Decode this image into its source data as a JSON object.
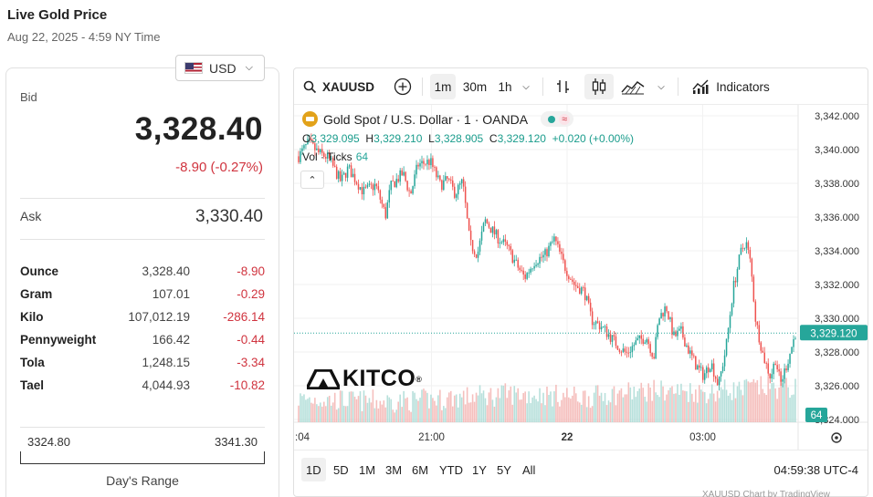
{
  "header": {
    "title": "Live Gold Price",
    "date": "Aug 22, 2025 - 4:59 NY Time"
  },
  "currency": {
    "label": "USD",
    "flag_icon": "us-flag-icon"
  },
  "quote": {
    "bid_label": "Bid",
    "bid": "3,328.40",
    "change": "-8.90 (-0.27%)",
    "ask_label": "Ask",
    "ask": "3,330.40"
  },
  "units": [
    {
      "name": "Ounce",
      "value": "3,328.40",
      "change": "-8.90"
    },
    {
      "name": "Gram",
      "value": "107.01",
      "change": "-0.29"
    },
    {
      "name": "Kilo",
      "value": "107,012.19",
      "change": "-286.14"
    },
    {
      "name": "Pennyweight",
      "value": "166.42",
      "change": "-0.44"
    },
    {
      "name": "Tola",
      "value": "1,248.15",
      "change": "-3.34"
    },
    {
      "name": "Tael",
      "value": "4,044.93",
      "change": "-10.82"
    }
  ],
  "range": {
    "low": "3324.80",
    "high": "3341.30",
    "label": "Day's Range"
  },
  "toolbar": {
    "symbol": "XAUUSD",
    "intervals": [
      "1m",
      "30m",
      "1h"
    ],
    "active_interval": "1m",
    "indicators_label": "Indicators"
  },
  "legend": {
    "title": "Gold Spot / U.S. Dollar · 1 · OANDA",
    "wave_icon": "≈",
    "o_label": "O",
    "o": "3,329.095",
    "h_label": "H",
    "h": "3,329.210",
    "l_label": "L",
    "l": "3,328.905",
    "c_label": "C",
    "c": "3,329.120",
    "chg": "+0.020 (+0.00%)",
    "vol_label": "Vol · Ticks",
    "vol_value": "64"
  },
  "brand": {
    "name": "KITCO",
    "reg": "®"
  },
  "ranges": [
    "1D",
    "5D",
    "1M",
    "3M",
    "6M",
    "YTD",
    "1Y",
    "5Y",
    "All"
  ],
  "active_range": "1D",
  "clock": "04:59:38 UTC-4",
  "footer_cutoff": "XAUUSD Chart by TradingView",
  "colors": {
    "up": "#26a69a",
    "down": "#ef5350",
    "negative_text": "#d0343f",
    "last_price_tag": "#26a69a"
  },
  "chart_data": {
    "type": "candlestick",
    "y_ticks": [
      "3,342.000",
      "3,340.000",
      "3,338.000",
      "3,336.000",
      "3,334.000",
      "3,332.000",
      "3,330.000",
      "3,328.000",
      "3,326.000",
      "3,324.000"
    ],
    "ylim": [
      3324,
      3342
    ],
    "x_ticks": [
      ":04",
      "21:00",
      "22",
      "03:00"
    ],
    "last_price_label": "3,329.120",
    "last_price": 3329.12,
    "volume_label": "64",
    "price_path": [
      [
        0.0,
        3339.6
      ],
      [
        0.02,
        3340.4
      ],
      [
        0.04,
        3339.8
      ],
      [
        0.06,
        3339.5
      ],
      [
        0.085,
        3338.1
      ],
      [
        0.1,
        3338.9
      ],
      [
        0.13,
        3337.5
      ],
      [
        0.155,
        3337.9
      ],
      [
        0.175,
        3336.1
      ],
      [
        0.185,
        3337.8
      ],
      [
        0.21,
        3338.6
      ],
      [
        0.225,
        3337.3
      ],
      [
        0.24,
        3339.1
      ],
      [
        0.265,
        3339.3
      ],
      [
        0.285,
        3337.9
      ],
      [
        0.3,
        3338.2
      ],
      [
        0.315,
        3337.4
      ],
      [
        0.33,
        3338.1
      ],
      [
        0.345,
        3334.4
      ],
      [
        0.36,
        3333.8
      ],
      [
        0.375,
        3335.8
      ],
      [
        0.4,
        3334.8
      ],
      [
        0.42,
        3334.2
      ],
      [
        0.44,
        3333.1
      ],
      [
        0.455,
        3332.4
      ],
      [
        0.475,
        3333.4
      ],
      [
        0.495,
        3333.7
      ],
      [
        0.515,
        3334.7
      ],
      [
        0.535,
        3333.1
      ],
      [
        0.555,
        3332.0
      ],
      [
        0.575,
        3331.6
      ],
      [
        0.59,
        3329.9
      ],
      [
        0.61,
        3329.5
      ],
      [
        0.625,
        3329.0
      ],
      [
        0.645,
        3328.3
      ],
      [
        0.66,
        3327.9
      ],
      [
        0.68,
        3328.6
      ],
      [
        0.7,
        3328.9
      ],
      [
        0.715,
        3327.7
      ],
      [
        0.725,
        3330.0
      ],
      [
        0.74,
        3330.7
      ],
      [
        0.755,
        3328.9
      ],
      [
        0.77,
        3329.2
      ],
      [
        0.785,
        3328.1
      ],
      [
        0.8,
        3327.2
      ],
      [
        0.815,
        3326.6
      ],
      [
        0.83,
        3327.4
      ],
      [
        0.845,
        3326.0
      ],
      [
        0.86,
        3328.2
      ],
      [
        0.875,
        3331.8
      ],
      [
        0.89,
        3333.9
      ],
      [
        0.9,
        3334.6
      ],
      [
        0.91,
        3333.2
      ],
      [
        0.92,
        3329.9
      ],
      [
        0.935,
        3327.8
      ],
      [
        0.95,
        3326.5
      ],
      [
        0.96,
        3327.6
      ],
      [
        0.97,
        3326.1
      ],
      [
        0.985,
        3327.5
      ],
      [
        1.0,
        3329.1
      ]
    ],
    "volume_profile": [
      0.35,
      0.32,
      0.3,
      0.28,
      0.3,
      0.34,
      0.4,
      0.45,
      0.5,
      0.48,
      0.45,
      0.42,
      0.5,
      0.55,
      0.6,
      0.58,
      0.55,
      0.62,
      0.7,
      0.68
    ]
  }
}
